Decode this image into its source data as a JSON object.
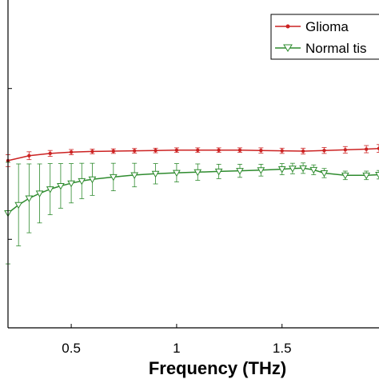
{
  "chart_data": {
    "type": "line",
    "title": "",
    "xlabel": "Frequency (THz)",
    "ylabel": "",
    "xlim": [
      0.2,
      1.96
    ],
    "ylim": [
      0,
      1
    ],
    "x_ticks": [
      0.5,
      1,
      1.5
    ],
    "x_tick_labels": [
      "0.5",
      "1",
      "1.5"
    ],
    "y_ticks": [
      0.27,
      0.73
    ],
    "grid": false,
    "legend_position": "top-right",
    "series": [
      {
        "name": "Glioma",
        "color": "#cc2222",
        "marker": "dot",
        "x": [
          0.2,
          0.3,
          0.4,
          0.5,
          0.6,
          0.7,
          0.8,
          0.9,
          1.0,
          1.1,
          1.2,
          1.3,
          1.4,
          1.5,
          1.6,
          1.7,
          1.8,
          1.9,
          1.96
        ],
        "y": [
          0.51,
          0.525,
          0.532,
          0.536,
          0.538,
          0.539,
          0.54,
          0.541,
          0.542,
          0.542,
          0.542,
          0.542,
          0.541,
          0.54,
          0.539,
          0.541,
          0.543,
          0.545,
          0.547
        ],
        "err": [
          0.018,
          0.012,
          0.009,
          0.008,
          0.007,
          0.007,
          0.007,
          0.007,
          0.007,
          0.007,
          0.007,
          0.007,
          0.008,
          0.008,
          0.009,
          0.009,
          0.01,
          0.011,
          0.012
        ]
      },
      {
        "name": "Normal tis",
        "color": "#2e8b2e",
        "marker": "triangle-down",
        "x": [
          0.2,
          0.25,
          0.3,
          0.35,
          0.4,
          0.45,
          0.5,
          0.55,
          0.6,
          0.7,
          0.8,
          0.9,
          1.0,
          1.1,
          1.2,
          1.3,
          1.4,
          1.5,
          1.55,
          1.6,
          1.65,
          1.7,
          1.8,
          1.9,
          1.96
        ],
        "y": [
          0.35,
          0.375,
          0.395,
          0.41,
          0.423,
          0.433,
          0.441,
          0.448,
          0.453,
          0.46,
          0.466,
          0.47,
          0.473,
          0.475,
          0.477,
          0.479,
          0.481,
          0.484,
          0.486,
          0.487,
          0.482,
          0.472,
          0.465,
          0.465,
          0.467
        ],
        "err": [
          0.155,
          0.125,
          0.105,
          0.09,
          0.078,
          0.068,
          0.06,
          0.054,
          0.049,
          0.042,
          0.036,
          0.031,
          0.028,
          0.025,
          0.022,
          0.02,
          0.018,
          0.017,
          0.016,
          0.016,
          0.015,
          0.014,
          0.013,
          0.013,
          0.013
        ]
      }
    ]
  }
}
